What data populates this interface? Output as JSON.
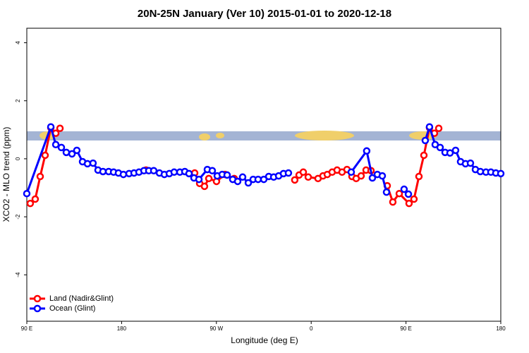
{
  "chart_data": {
    "type": "line",
    "title": "20N-25N January (Ver 10)   2015-01-01 to 2020-12-18",
    "x_label": "Longitude (deg E)",
    "y_label": "XCO2 - MLO trend (ppm)",
    "xlim": [
      90,
      540
    ],
    "ylim": [
      -5.6,
      4.5
    ],
    "xticks": [
      {
        "value": 90,
        "label": "90 E"
      },
      {
        "value": 180,
        "label": "180"
      },
      {
        "value": 270,
        "label": "90 W"
      },
      {
        "value": 360,
        "label": "0"
      },
      {
        "value": 450,
        "label": "90 E"
      },
      {
        "value": 540,
        "label": "180"
      }
    ],
    "yticks": [
      -4,
      -2,
      0,
      2,
      4
    ],
    "grid": false,
    "legend": "bottomleft",
    "series": [
      {
        "name": "Land (Nadir&Glint)",
        "color": "#ff0000",
        "x": [
          93.3,
          98.0,
          102.7,
          107.4,
          112.8,
          117.5,
          121.5,
          null,
          203.2,
          null,
          249.4,
          254.1,
          258.7,
          262.8,
          270.1,
          278.2,
          286.9,
          null,
          344.4,
          348.5,
          352.5,
          357.2,
          366.5,
          371.2,
          375.3,
          379.9,
          384.6,
          389.3,
          394.0,
          398.7,
          402.7,
          407.4,
          412.1,
          416.8,
          null,
          432.2,
          437.5,
          443.6,
          452.9,
          457.6,
          462.3,
          467.0,
          472.3,
          477.0,
          481.1
        ],
        "values": [
          -1.54,
          -1.39,
          -0.61,
          0.12,
          1.07,
          0.88,
          1.05,
          null,
          -0.39,
          null,
          -0.49,
          -0.85,
          -0.95,
          -0.68,
          -0.78,
          -0.54,
          -0.68,
          null,
          -0.73,
          -0.56,
          -0.46,
          -0.63,
          -0.68,
          -0.59,
          -0.54,
          -0.46,
          -0.39,
          -0.46,
          -0.37,
          -0.61,
          -0.68,
          -0.59,
          -0.39,
          -0.41,
          null,
          -0.93,
          -1.49,
          -1.2,
          -1.54,
          -1.39,
          -0.61,
          0.12,
          1.07,
          0.88,
          1.05
        ]
      },
      {
        "name": "Ocean (Glint)",
        "color": "#0000ff",
        "x": [
          90.0,
          112.8,
          117.5,
          122.8,
          127.5,
          132.9,
          137.5,
          142.9,
          147.6,
          152.9,
          157.6,
          162.3,
          167.7,
          172.4,
          177.0,
          181.7,
          187.1,
          191.8,
          196.5,
          201.2,
          205.8,
          210.5,
          215.9,
          220.6,
          225.3,
          229.9,
          235.3,
          240.0,
          244.0,
          248.7,
          253.4,
          261.4,
          266.1,
          270.8,
          275.5,
          280.2,
          285.5,
          290.2,
          294.9,
          300.3,
          304.9,
          309.6,
          315.0,
          319.7,
          324.4,
          329.1,
          333.7,
          338.4,
          null,
          398.0,
          412.7,
          418.1,
          422.8,
          427.5,
          431.5,
          null,
          448.2,
          452.3,
          null,
          468.3,
          472.3,
          477.7,
          482.4,
          487.1,
          491.8,
          497.1,
          501.8,
          506.5,
          511.2,
          515.9,
          520.6,
          525.9,
          530.6,
          535.3,
          540.0
        ],
        "values": [
          -1.2,
          1.1,
          0.49,
          0.39,
          0.22,
          0.17,
          0.29,
          -0.1,
          -0.17,
          -0.15,
          -0.39,
          -0.44,
          -0.44,
          -0.46,
          -0.49,
          -0.54,
          -0.51,
          -0.49,
          -0.46,
          -0.41,
          -0.41,
          -0.41,
          -0.49,
          -0.54,
          -0.51,
          -0.46,
          -0.46,
          -0.44,
          -0.51,
          -0.66,
          -0.71,
          -0.37,
          -0.41,
          -0.59,
          -0.54,
          -0.56,
          -0.71,
          -0.78,
          -0.63,
          -0.83,
          -0.71,
          -0.71,
          -0.71,
          -0.61,
          -0.63,
          -0.59,
          -0.51,
          -0.49,
          null,
          -0.46,
          0.27,
          -0.66,
          -0.54,
          -0.59,
          -1.15,
          null,
          -1.05,
          -1.22,
          null,
          0.63,
          1.1,
          0.49,
          0.39,
          0.22,
          0.2,
          0.29,
          -0.1,
          -0.17,
          -0.15,
          -0.37,
          -0.44,
          -0.46,
          -0.46,
          -0.49,
          -0.51
        ]
      }
    ]
  }
}
